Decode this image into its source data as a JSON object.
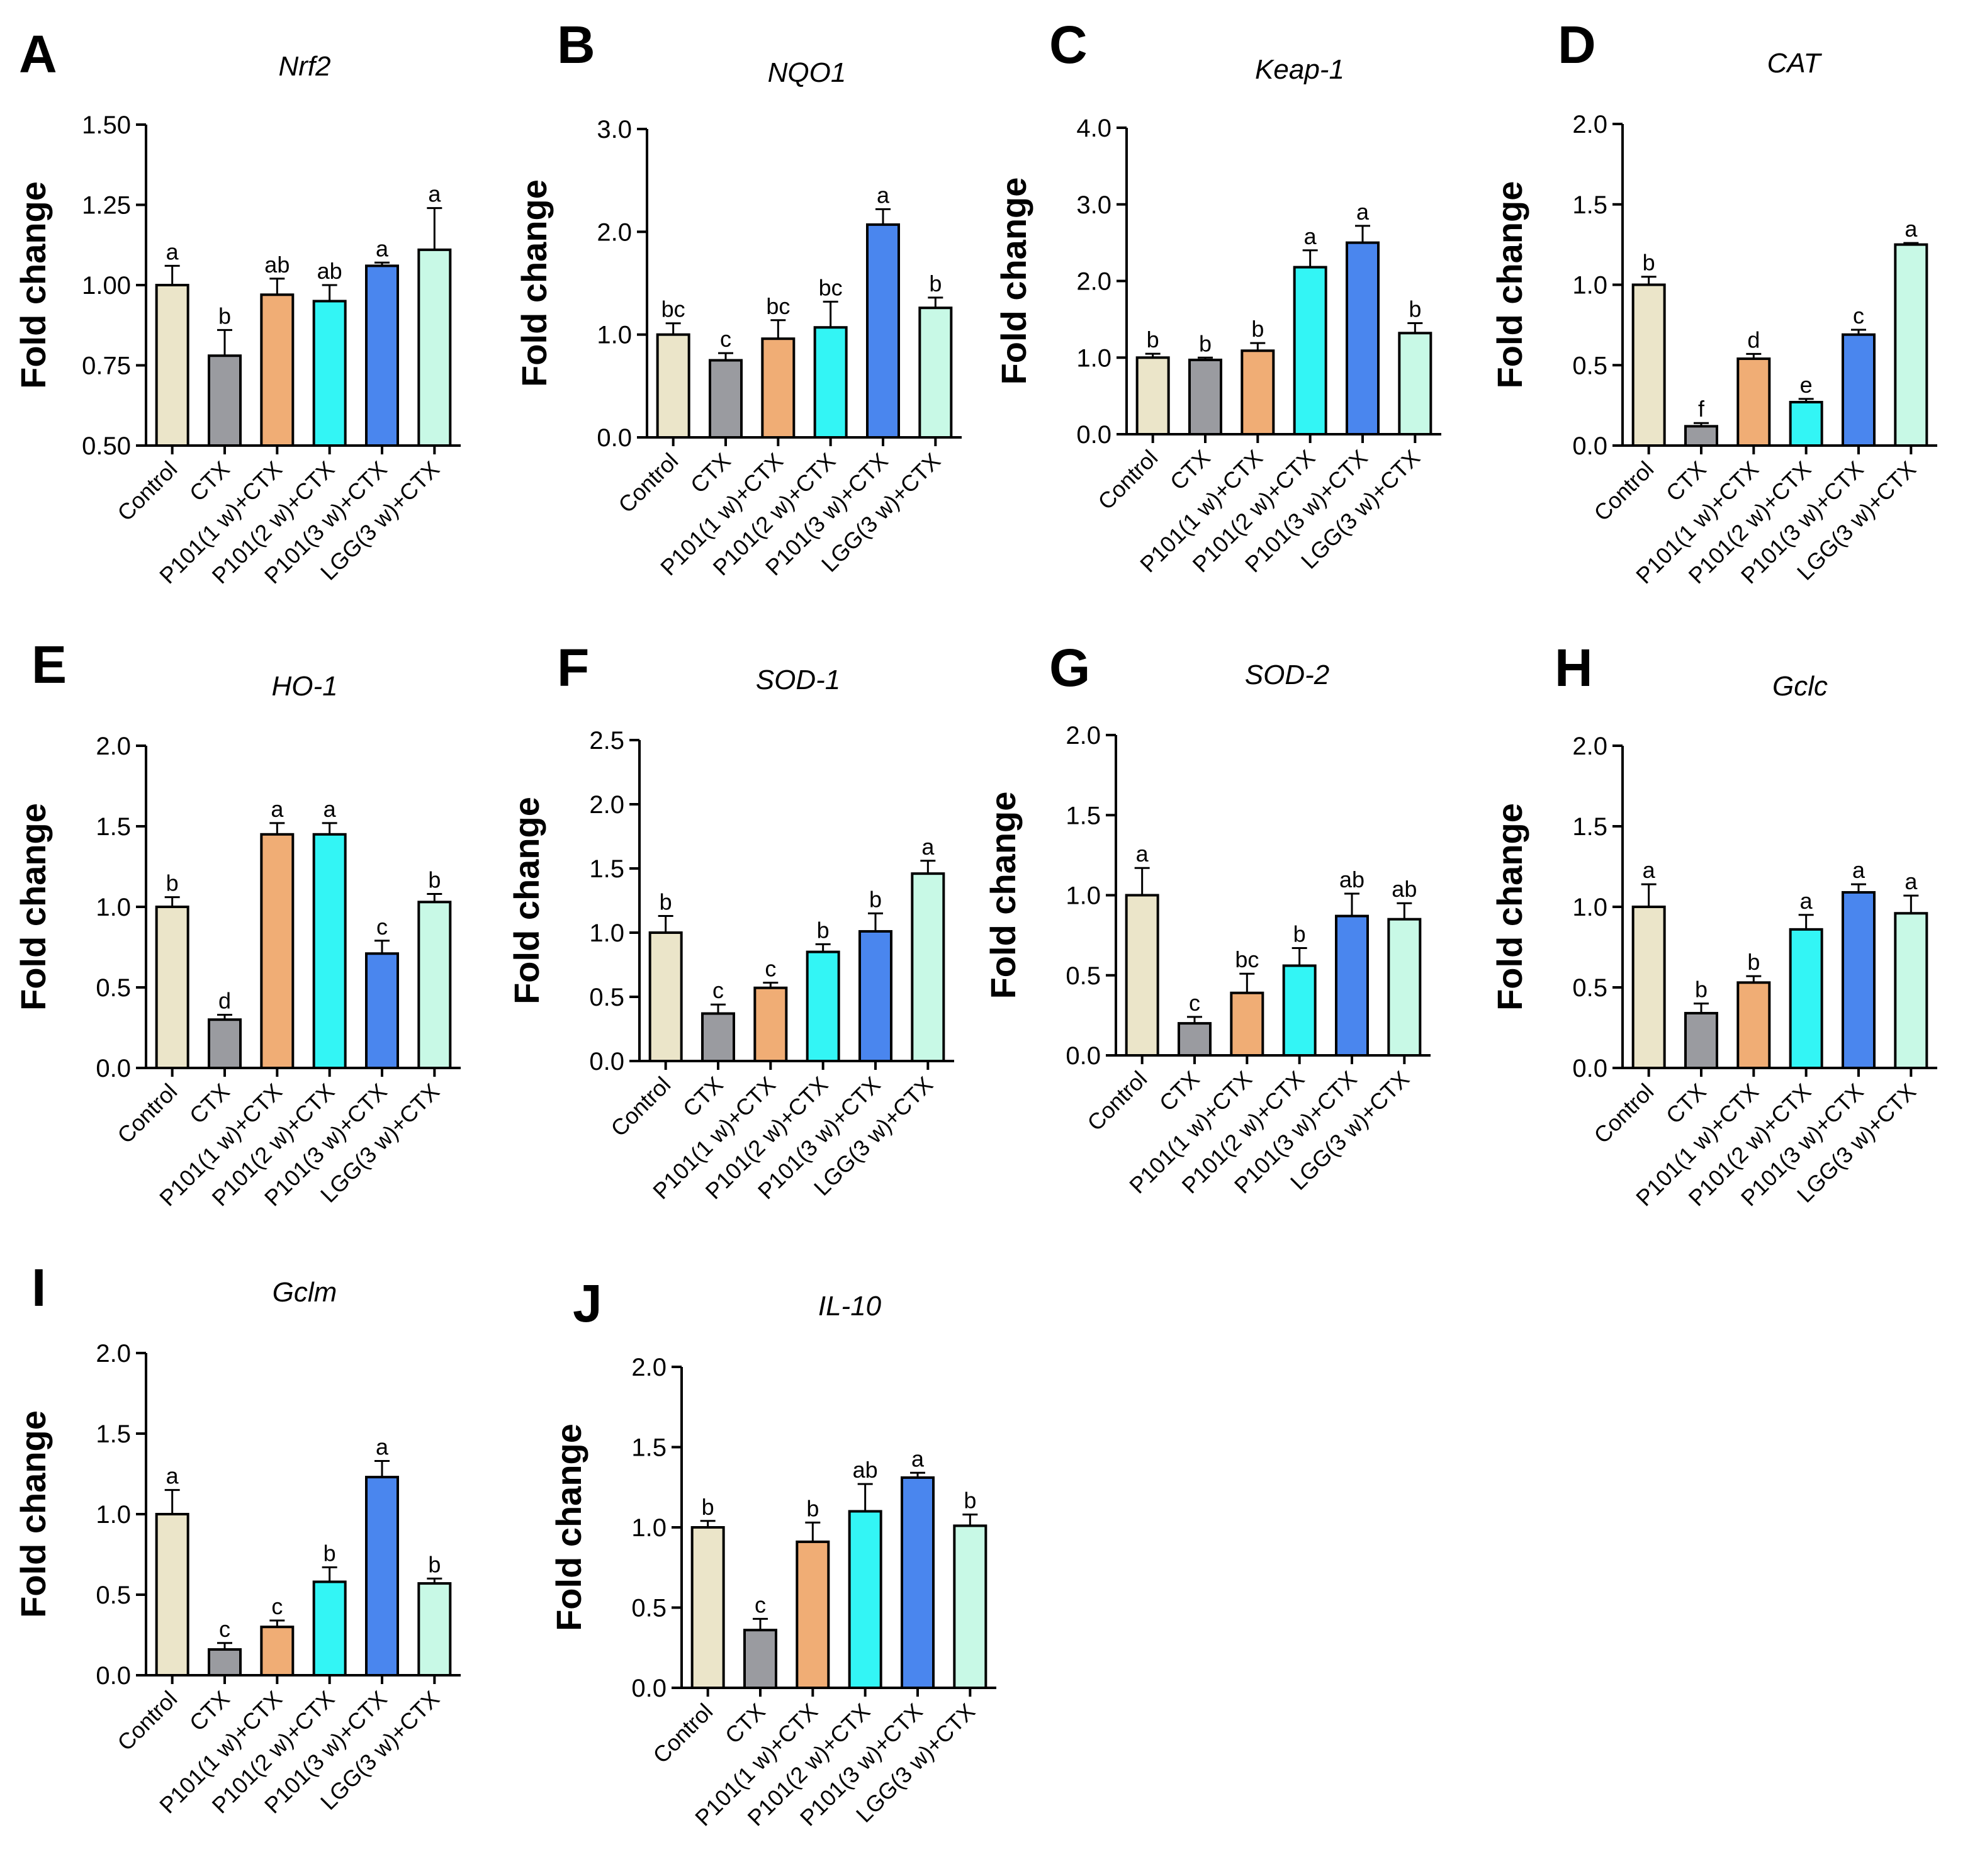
{
  "palette": [
    "#ebe5c9",
    "#9a9ba0",
    "#f0ad75",
    "#33f5f5",
    "#4a86ee",
    "#c8f9e6"
  ],
  "chart_data": [
    {
      "type": "bar",
      "panel": "A",
      "title": "Nrf2",
      "ylabel": "Fold change",
      "ylim": [
        0.5,
        1.5
      ],
      "yticks": [
        "0.50",
        "0.75",
        "1.00",
        "1.25",
        "1.50"
      ],
      "categories": [
        "Control",
        "CTX",
        "P101(1 w)+CTX",
        "P101(2 w)+CTX",
        "P101(3 w)+CTX",
        "LGG(3 w)+CTX"
      ],
      "values": [
        1.0,
        0.78,
        0.97,
        0.95,
        1.06,
        1.11
      ],
      "errors": [
        0.06,
        0.08,
        0.05,
        0.05,
        0.01,
        0.13
      ],
      "labels": [
        "a",
        "b",
        "ab",
        "ab",
        "a",
        "a"
      ]
    },
    {
      "type": "bar",
      "panel": "B",
      "title": "NQO1",
      "ylabel": "Fold change",
      "ylim": [
        0,
        3
      ],
      "yticks": [
        "0.0",
        "1.0",
        "2.0",
        "3.0"
      ],
      "categories": [
        "Control",
        "CTX",
        "P101(1 w)+CTX",
        "P101(2 w)+CTX",
        "P101(3 w)+CTX",
        "LGG(3 w)+CTX"
      ],
      "values": [
        1.0,
        0.75,
        0.96,
        1.07,
        2.07,
        1.26
      ],
      "errors": [
        0.11,
        0.07,
        0.18,
        0.25,
        0.15,
        0.1
      ],
      "labels": [
        "bc",
        "c",
        "bc",
        "bc",
        "a",
        "b"
      ]
    },
    {
      "type": "bar",
      "panel": "C",
      "title": "Keap-1",
      "ylabel": "Fold change",
      "ylim": [
        0,
        4
      ],
      "yticks": [
        "0.0",
        "1.0",
        "2.0",
        "3.0",
        "4.0"
      ],
      "categories": [
        "Control",
        "CTX",
        "P101(1 w)+CTX",
        "P101(2 w)+CTX",
        "P101(3 w)+CTX",
        "LGG(3 w)+CTX"
      ],
      "values": [
        1.0,
        0.97,
        1.09,
        2.18,
        2.5,
        1.32
      ],
      "errors": [
        0.05,
        0.03,
        0.1,
        0.22,
        0.22,
        0.13
      ],
      "labels": [
        "b",
        "b",
        "b",
        "a",
        "a",
        "b"
      ]
    },
    {
      "type": "bar",
      "panel": "D",
      "title": "CAT",
      "ylabel": "Fold change",
      "ylim": [
        0,
        2
      ],
      "yticks": [
        "0.0",
        "0.5",
        "1.0",
        "1.5",
        "2.0"
      ],
      "categories": [
        "Control",
        "CTX",
        "P101(1 w)+CTX",
        "P101(2 w)+CTX",
        "P101(3 w)+CTX",
        "LGG(3 w)+CTX"
      ],
      "values": [
        1.0,
        0.12,
        0.54,
        0.27,
        0.69,
        1.25
      ],
      "errors": [
        0.05,
        0.02,
        0.03,
        0.02,
        0.03,
        0.01
      ],
      "labels": [
        "b",
        "f",
        "d",
        "e",
        "c",
        "a"
      ]
    },
    {
      "type": "bar",
      "panel": "E",
      "title": "HO-1",
      "ylabel": "Fold change",
      "ylim": [
        0,
        2
      ],
      "yticks": [
        "0.0",
        "0.5",
        "1.0",
        "1.5",
        "2.0"
      ],
      "categories": [
        "Control",
        "CTX",
        "P101(1 w)+CTX",
        "P101(2 w)+CTX",
        "P101(3 w)+CTX",
        "LGG(3 w)+CTX"
      ],
      "values": [
        1.0,
        0.3,
        1.45,
        1.45,
        0.71,
        1.03
      ],
      "errors": [
        0.06,
        0.03,
        0.07,
        0.07,
        0.08,
        0.05
      ],
      "labels": [
        "b",
        "d",
        "a",
        "a",
        "c",
        "b"
      ]
    },
    {
      "type": "bar",
      "panel": "F",
      "title": "SOD-1",
      "ylabel": "Fold change",
      "ylim": [
        0,
        2.5
      ],
      "yticks": [
        "0.0",
        "0.5",
        "1.0",
        "1.5",
        "2.0",
        "2.5"
      ],
      "categories": [
        "Control",
        "CTX",
        "P101(1 w)+CTX",
        "P101(2 w)+CTX",
        "P101(3 w)+CTX",
        "LGG(3 w)+CTX"
      ],
      "values": [
        1.0,
        0.37,
        0.57,
        0.85,
        1.01,
        1.46
      ],
      "errors": [
        0.13,
        0.07,
        0.04,
        0.06,
        0.14,
        0.1
      ],
      "labels": [
        "b",
        "c",
        "c",
        "b",
        "b",
        "a"
      ]
    },
    {
      "type": "bar",
      "panel": "G",
      "title": "SOD-2",
      "ylabel": "Fold change",
      "ylim": [
        0,
        2
      ],
      "yticks": [
        "0.0",
        "0.5",
        "1.0",
        "1.5",
        "2.0"
      ],
      "categories": [
        "Control",
        "CTX",
        "P101(1 w)+CTX",
        "P101(2 w)+CTX",
        "P101(3 w)+CTX",
        "LGG(3 w)+CTX"
      ],
      "values": [
        1.0,
        0.2,
        0.39,
        0.56,
        0.87,
        0.85
      ],
      "errors": [
        0.17,
        0.04,
        0.12,
        0.11,
        0.14,
        0.1
      ],
      "labels": [
        "a",
        "c",
        "bc",
        "b",
        "ab",
        "ab"
      ]
    },
    {
      "type": "bar",
      "panel": "H",
      "title": "Gclc",
      "ylabel": "Fold change",
      "ylim": [
        0,
        2
      ],
      "yticks": [
        "0.0",
        "0.5",
        "1.0",
        "1.5",
        "2.0"
      ],
      "categories": [
        "Control",
        "CTX",
        "P101(1 w)+CTX",
        "P101(2 w)+CTX",
        "P101(3 w)+CTX",
        "LGG(3 w)+CTX"
      ],
      "values": [
        1.0,
        0.34,
        0.53,
        0.86,
        1.09,
        0.96
      ],
      "errors": [
        0.14,
        0.06,
        0.04,
        0.09,
        0.05,
        0.11
      ],
      "labels": [
        "a",
        "b",
        "b",
        "a",
        "a",
        "a"
      ]
    },
    {
      "type": "bar",
      "panel": "I",
      "title": "Gclm",
      "ylabel": "Fold change",
      "ylim": [
        0,
        2
      ],
      "yticks": [
        "0.0",
        "0.5",
        "1.0",
        "1.5",
        "2.0"
      ],
      "categories": [
        "Control",
        "CTX",
        "P101(1 w)+CTX",
        "P101(2 w)+CTX",
        "P101(3 w)+CTX",
        "LGG(3 w)+CTX"
      ],
      "values": [
        1.0,
        0.16,
        0.3,
        0.58,
        1.23,
        0.57
      ],
      "errors": [
        0.15,
        0.04,
        0.04,
        0.09,
        0.1,
        0.03
      ],
      "labels": [
        "a",
        "c",
        "c",
        "b",
        "a",
        "b"
      ]
    },
    {
      "type": "bar",
      "panel": "J",
      "title": "IL-10",
      "ylabel": "Fold change",
      "ylim": [
        0,
        2
      ],
      "yticks": [
        "0.0",
        "0.5",
        "1.0",
        "1.5",
        "2.0"
      ],
      "categories": [
        "Control",
        "CTX",
        "P101(1 w)+CTX",
        "P101(2 w)+CTX",
        "P101(3 w)+CTX",
        "LGG(3 w)+CTX"
      ],
      "values": [
        1.0,
        0.36,
        0.91,
        1.1,
        1.31,
        1.01
      ],
      "errors": [
        0.04,
        0.07,
        0.12,
        0.17,
        0.03,
        0.07
      ],
      "labels": [
        "b",
        "c",
        "b",
        "ab",
        "a",
        "b"
      ]
    }
  ]
}
